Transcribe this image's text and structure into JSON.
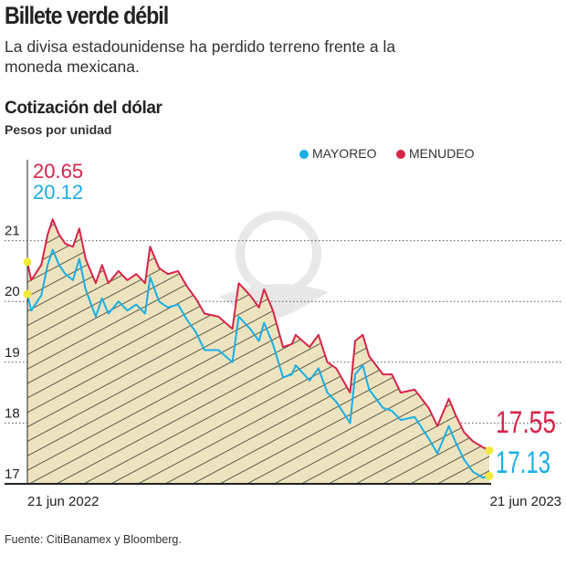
{
  "header": {
    "title": "Billete verde débil",
    "subtitle": "La divisa estadounidense ha perdido terreno frente a la moneda mexicana."
  },
  "footer": {
    "source": "Fuente: CitiBanamex y Bloomberg."
  },
  "colors": {
    "mayoreo": "#1aaee5",
    "menudeo": "#d7244a",
    "area_fill": "#ede4bf",
    "hatch": "#5e5a4a",
    "marker": "#f2ea3a"
  },
  "chart_data": {
    "type": "line",
    "title": "Cotización del dólar",
    "ylabel": "Pesos por unidad",
    "ylim": [
      17,
      22
    ],
    "yticks": [
      17,
      18,
      19,
      20,
      21
    ],
    "ytick_labels": [
      "17",
      "18",
      "19",
      "20",
      "21"
    ],
    "xlim": [
      "2022-06-21",
      "2023-06-21"
    ],
    "xtick_labels": [
      "21 jun 2022",
      "21 jun 2023"
    ],
    "grid": "horizontal dotted",
    "legend": "top-right",
    "area_under": "MENUDEO",
    "annotations": {
      "start_menudeo": "20.65",
      "start_mayoreo": "20.12",
      "end_menudeo": "17.55",
      "end_mayoreo": "17.13"
    },
    "x": [
      "2022-06-21",
      "2022-06-24",
      "2022-07-02",
      "2022-07-07",
      "2022-07-11",
      "2022-07-16",
      "2022-07-21",
      "2022-07-27",
      "2022-08-01",
      "2022-08-06",
      "2022-08-14",
      "2022-08-19",
      "2022-08-24",
      "2022-09-01",
      "2022-09-08",
      "2022-09-15",
      "2022-09-22",
      "2022-09-26",
      "2022-10-03",
      "2022-10-10",
      "2022-10-18",
      "2022-10-25",
      "2022-11-01",
      "2022-11-08",
      "2022-11-19",
      "2022-11-30",
      "2022-12-05",
      "2022-12-14",
      "2022-12-21",
      "2022-12-25",
      "2023-01-01",
      "2023-01-09",
      "2023-01-16",
      "2023-01-19",
      "2023-01-30",
      "2023-02-06",
      "2023-02-13",
      "2023-02-20",
      "2023-03-03",
      "2023-03-07",
      "2023-03-13",
      "2023-03-18",
      "2023-03-29",
      "2023-04-05",
      "2023-04-12",
      "2023-04-23",
      "2023-05-04",
      "2023-05-11",
      "2023-05-20",
      "2023-05-25",
      "2023-06-01",
      "2023-06-08",
      "2023-06-16",
      "2023-06-21"
    ],
    "series": [
      {
        "name": "MAYOREO",
        "values": [
          20.12,
          19.85,
          20.1,
          20.6,
          20.85,
          20.6,
          20.45,
          20.35,
          20.7,
          20.2,
          19.75,
          20.05,
          19.8,
          20.0,
          19.85,
          19.95,
          19.8,
          20.4,
          20.0,
          19.9,
          19.95,
          19.7,
          19.5,
          19.2,
          19.2,
          19.0,
          19.75,
          19.55,
          19.35,
          19.65,
          19.3,
          18.75,
          18.8,
          18.95,
          18.7,
          18.9,
          18.5,
          18.35,
          18.0,
          18.8,
          18.95,
          18.55,
          18.25,
          18.2,
          18.05,
          18.1,
          17.75,
          17.5,
          17.95,
          17.7,
          17.4,
          17.2,
          17.1,
          17.13
        ]
      },
      {
        "name": "MENUDEO",
        "values": [
          20.65,
          20.35,
          20.6,
          21.1,
          21.35,
          21.1,
          20.95,
          20.9,
          21.2,
          20.7,
          20.3,
          20.6,
          20.3,
          20.5,
          20.35,
          20.45,
          20.3,
          20.9,
          20.55,
          20.45,
          20.5,
          20.25,
          20.05,
          19.8,
          19.75,
          19.55,
          20.3,
          20.1,
          19.9,
          20.2,
          19.85,
          19.25,
          19.3,
          19.45,
          19.25,
          19.45,
          19.0,
          18.9,
          18.5,
          19.35,
          19.45,
          19.1,
          18.8,
          18.8,
          18.5,
          18.55,
          18.25,
          17.95,
          18.4,
          18.15,
          17.85,
          17.7,
          17.6,
          17.55
        ]
      }
    ]
  }
}
